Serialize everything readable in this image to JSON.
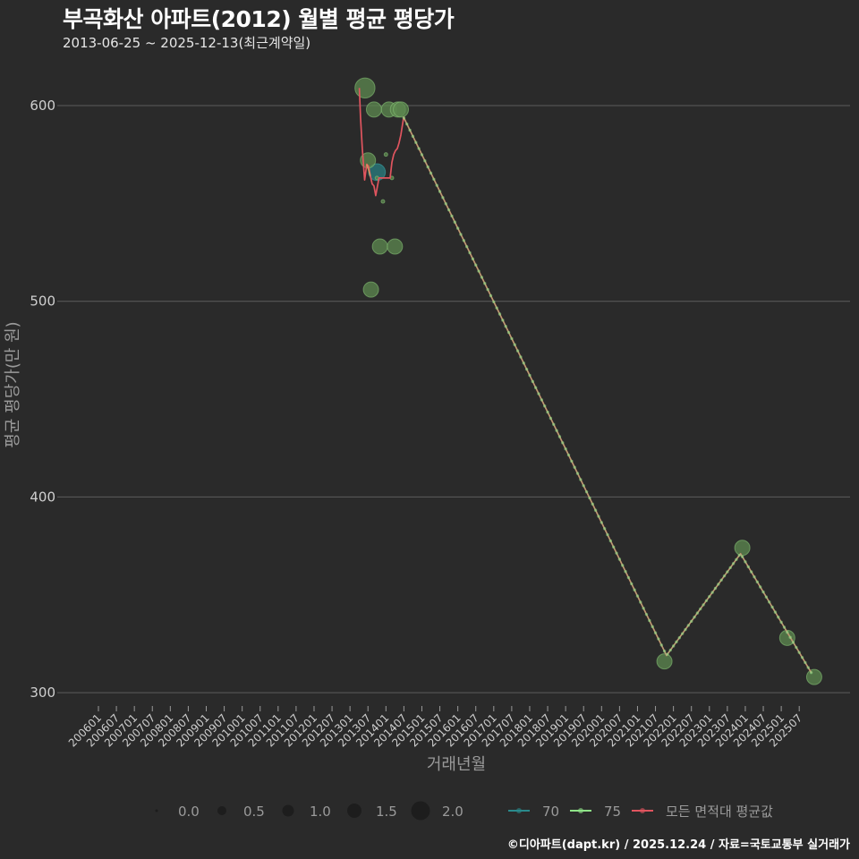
{
  "header": {
    "title": "부곡화산 아파트(2012) 월별 평균 평당가",
    "subtitle": "2013-06-25 ~ 2025-12-13(최근계약일)"
  },
  "footer": {
    "credit": "©디아파트(dapt.kr) / 2025.12.24 / 자료=국토교통부 실거래가"
  },
  "legend": {
    "size_items": [
      {
        "label": "0.0",
        "value": 0.0
      },
      {
        "label": "0.5",
        "value": 0.5
      },
      {
        "label": "1.0",
        "value": 1.0
      },
      {
        "label": "1.5",
        "value": 1.5
      },
      {
        "label": "2.0",
        "value": 2.0
      }
    ],
    "line_items": [
      {
        "label": "70",
        "color": "#2a8a8c"
      },
      {
        "label": "75",
        "color": "#8fe388"
      },
      {
        "label": "모든 면적대 평균값",
        "color": "#e0555f"
      }
    ]
  },
  "colors": {
    "background": "#2a2a2a",
    "grid": "#5c5c5c",
    "bubble_75_fill": "#5e8a50",
    "bubble_75_stroke": "#86c274",
    "bubble_70_fill": "#2a7f82",
    "line_avg": "#e0555f",
    "line_75": "#8fe388"
  },
  "chart_data": {
    "type": "scatter",
    "title": "부곡화산 아파트(2012) 월별 평균 평당가",
    "subtitle": "2013-06-25 ~ 2025-12-13(최근계약일)",
    "xlabel": "거래년월",
    "ylabel": "평균 평당가(만 원)",
    "ylim": [
      297,
      626
    ],
    "y_ticks": [
      300,
      400,
      500,
      600
    ],
    "grid": "horizontal",
    "legend_position": "bottom",
    "x_tick_labels": [
      "200601",
      "200607",
      "200701",
      "200707",
      "200801",
      "200807",
      "200901",
      "200907",
      "201001",
      "201007",
      "201101",
      "201107",
      "201201",
      "201207",
      "201301",
      "201307",
      "201401",
      "201407",
      "201501",
      "201507",
      "201601",
      "201607",
      "201701",
      "201707",
      "201801",
      "201807",
      "201901",
      "201907",
      "202001",
      "202007",
      "202101",
      "202107",
      "202201",
      "202207",
      "202301",
      "202307",
      "202401",
      "202407",
      "202501",
      "202507"
    ],
    "series": [
      {
        "name": "70",
        "mode": "markers",
        "color": "#2a8a8c",
        "points": [
          {
            "x": "2013-10",
            "y": 566,
            "size": 1.3
          }
        ]
      },
      {
        "name": "75",
        "mode": "markers+lines",
        "color": "#8fe388",
        "points": [
          {
            "x": "2013-06",
            "y": 609,
            "size": 2.0
          },
          {
            "x": "2013-07",
            "y": 572,
            "size": 1.0
          },
          {
            "x": "2013-08",
            "y": 506,
            "size": 1.0
          },
          {
            "x": "2013-09",
            "y": 598,
            "size": 1.0
          },
          {
            "x": "2013-10",
            "y": 563,
            "size": 0.0
          },
          {
            "x": "2013-11",
            "y": 528,
            "size": 1.0
          },
          {
            "x": "2013-12",
            "y": 551,
            "size": 0.0
          },
          {
            "x": "2014-01",
            "y": 575,
            "size": 0.0
          },
          {
            "x": "2014-02",
            "y": 598,
            "size": 1.0
          },
          {
            "x": "2014-03",
            "y": 563,
            "size": 0.0
          },
          {
            "x": "2014-04",
            "y": 528,
            "size": 1.0
          },
          {
            "x": "2014-05",
            "y": 598,
            "size": 1.0
          },
          {
            "x": "2014-06",
            "y": 598,
            "size": 1.0
          },
          {
            "x": "2021-10",
            "y": 316,
            "size": 1.0
          },
          {
            "x": "2023-12",
            "y": 374,
            "size": 1.0
          },
          {
            "x": "2025-03",
            "y": 328,
            "size": 1.0
          },
          {
            "x": "2025-12",
            "y": 308,
            "size": 1.0
          }
        ],
        "line": [
          {
            "x": "2013-06-19",
            "y": 570
          },
          {
            "x": "2013-07-25",
            "y": 564
          },
          {
            "x": "2014-06-28",
            "y": 594
          },
          {
            "x": "2021-10-22",
            "y": 319
          },
          {
            "x": "2023-11-13",
            "y": 371
          },
          {
            "x": "2025-11-04",
            "y": 310
          }
        ],
        "line_markers_from": "2014-07"
      },
      {
        "name": "모든 면적대 평균값",
        "mode": "lines",
        "color": "#e0555f",
        "line": [
          {
            "x": "2013-04-05",
            "y": 609
          },
          {
            "x": "2013-04-16",
            "y": 594
          },
          {
            "x": "2013-05-04",
            "y": 578
          },
          {
            "x": "2013-05-28",
            "y": 562
          },
          {
            "x": "2013-06-19",
            "y": 570
          },
          {
            "x": "2013-07-07",
            "y": 569
          },
          {
            "x": "2013-07-25",
            "y": 564
          },
          {
            "x": "2013-08-13",
            "y": 560
          },
          {
            "x": "2013-09-01",
            "y": 559
          },
          {
            "x": "2013-09-19",
            "y": 554
          },
          {
            "x": "2013-10-07",
            "y": 559
          },
          {
            "x": "2013-10-22",
            "y": 563
          },
          {
            "x": "2013-12-01",
            "y": 563
          },
          {
            "x": "2014-02-13",
            "y": 563
          },
          {
            "x": "2014-03-01",
            "y": 571
          },
          {
            "x": "2014-03-19",
            "y": 575
          },
          {
            "x": "2014-04-07",
            "y": 577
          },
          {
            "x": "2014-04-25",
            "y": 578
          },
          {
            "x": "2014-05-13",
            "y": 581
          },
          {
            "x": "2014-06-01",
            "y": 585
          },
          {
            "x": "2014-06-28",
            "y": 594
          },
          {
            "x": "2021-10-22",
            "y": 319
          },
          {
            "x": "2023-11-13",
            "y": 371
          },
          {
            "x": "2025-11-04",
            "y": 310
          }
        ]
      }
    ]
  }
}
